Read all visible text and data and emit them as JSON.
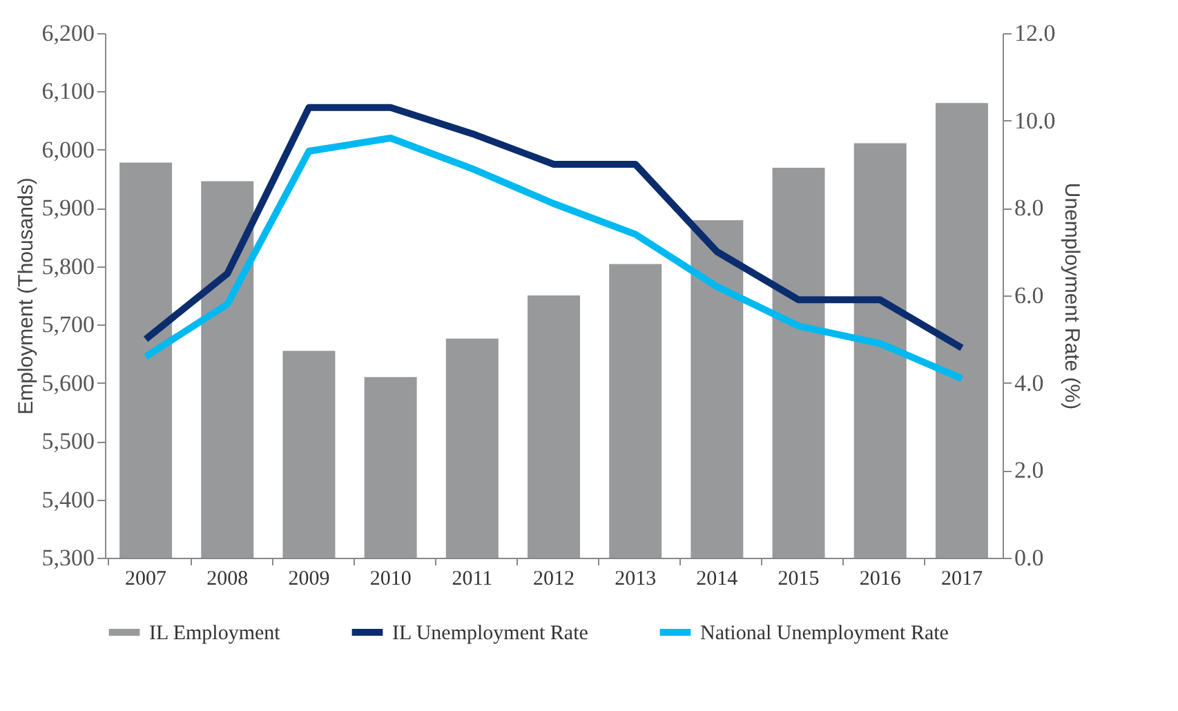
{
  "chart_data": {
    "type": "bar",
    "categories": [
      "2007",
      "2008",
      "2009",
      "2010",
      "2011",
      "2012",
      "2013",
      "2014",
      "2015",
      "2016",
      "2017"
    ],
    "ylabel": "Employment (Thousands)",
    "y2label": "Unemployment Rate (%)",
    "ylim": [
      5300,
      6200
    ],
    "yticks": [
      {
        "value": 5300,
        "label": "5,300"
      },
      {
        "value": 5400,
        "label": "5,400"
      },
      {
        "value": 5500,
        "label": "5,500"
      },
      {
        "value": 5600,
        "label": "5,600"
      },
      {
        "value": 5700,
        "label": "5,700"
      },
      {
        "value": 5800,
        "label": "5,800"
      },
      {
        "value": 5900,
        "label": "5,900"
      },
      {
        "value": 6000,
        "label": "6,000"
      },
      {
        "value": 6100,
        "label": "6,100"
      },
      {
        "value": 6200,
        "label": "6,200"
      }
    ],
    "y2lim": [
      0,
      12
    ],
    "y2ticks": [
      {
        "value": 0,
        "label": "0.0"
      },
      {
        "value": 2,
        "label": "2.0"
      },
      {
        "value": 4,
        "label": "4.0"
      },
      {
        "value": 6,
        "label": "6.0"
      },
      {
        "value": 8,
        "label": "8.0"
      },
      {
        "value": 10,
        "label": "10.0"
      },
      {
        "value": 12,
        "label": "12.0"
      }
    ],
    "series": [
      {
        "name": "IL Employment",
        "color": "#98999b",
        "values": [
          5978,
          5946,
          5655,
          5610,
          5676,
          5750,
          5804,
          5879,
          5969,
          6011,
          6080
        ]
      },
      {
        "name": "IL Unemployment Rate",
        "type": "line",
        "axis": "y2",
        "color": "#0b2d6e",
        "values": [
          5.0,
          6.5,
          10.3,
          10.3,
          9.7,
          9.0,
          9.0,
          7.0,
          5.9,
          5.9,
          4.8
        ]
      },
      {
        "name": "National Unemployment Rate",
        "type": "line",
        "axis": "y2",
        "color": "#00b9f0",
        "values": [
          4.6,
          5.8,
          9.3,
          9.6,
          8.9,
          8.1,
          7.4,
          6.2,
          5.3,
          4.9,
          4.1
        ]
      }
    ],
    "grid": false,
    "legend": "bottom"
  }
}
